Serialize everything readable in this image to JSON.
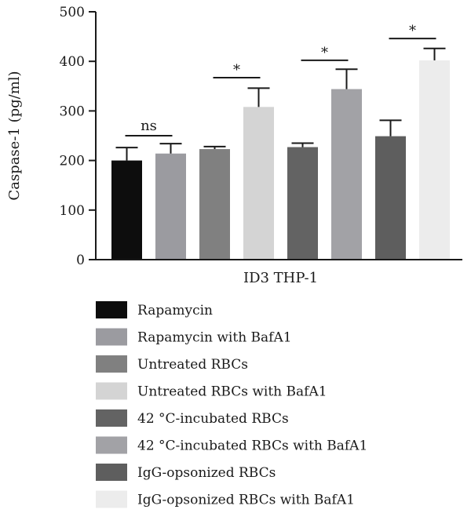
{
  "chart_data": {
    "type": "bar",
    "title": "",
    "xlabel": "ID3 THP-1",
    "ylabel": "Caspase-1 (pg/ml)",
    "ylim": [
      0,
      500
    ],
    "yticks": [
      0,
      100,
      200,
      300,
      400,
      500
    ],
    "grid": false,
    "legend_position": "bottom",
    "series": [
      {
        "name": "Rapamycin",
        "value": 200,
        "error": 26,
        "color": "#0d0d0d"
      },
      {
        "name": "Rapamycin with BafA1",
        "value": 214,
        "error": 20,
        "color": "#9b9ba0"
      },
      {
        "name": "Untreated RBCs",
        "value": 223,
        "error": 5,
        "color": "#808080"
      },
      {
        "name": "Untreated RBCs with BafA1",
        "value": 308,
        "error": 38,
        "color": "#d4d4d4"
      },
      {
        "name": "42 °C-incubated RBCs",
        "value": 227,
        "error": 8,
        "color": "#636363"
      },
      {
        "name": "42 °C-incubated RBCs with BafA1",
        "value": 344,
        "error": 40,
        "color": "#a2a2a6"
      },
      {
        "name": "IgG-opsonized RBCs",
        "value": 249,
        "error": 32,
        "color": "#5e5e5e"
      },
      {
        "name": "IgG-opsonized RBCs with BafA1",
        "value": 402,
        "error": 24,
        "color": "#ececec"
      }
    ],
    "annotations": [
      {
        "between": [
          0,
          1
        ],
        "label": "ns",
        "at_value": 250
      },
      {
        "between": [
          2,
          3
        ],
        "label": "*",
        "at_value": 367
      },
      {
        "between": [
          4,
          5
        ],
        "label": "*",
        "at_value": 402
      },
      {
        "between": [
          6,
          7
        ],
        "label": "*",
        "at_value": 446
      }
    ]
  }
}
